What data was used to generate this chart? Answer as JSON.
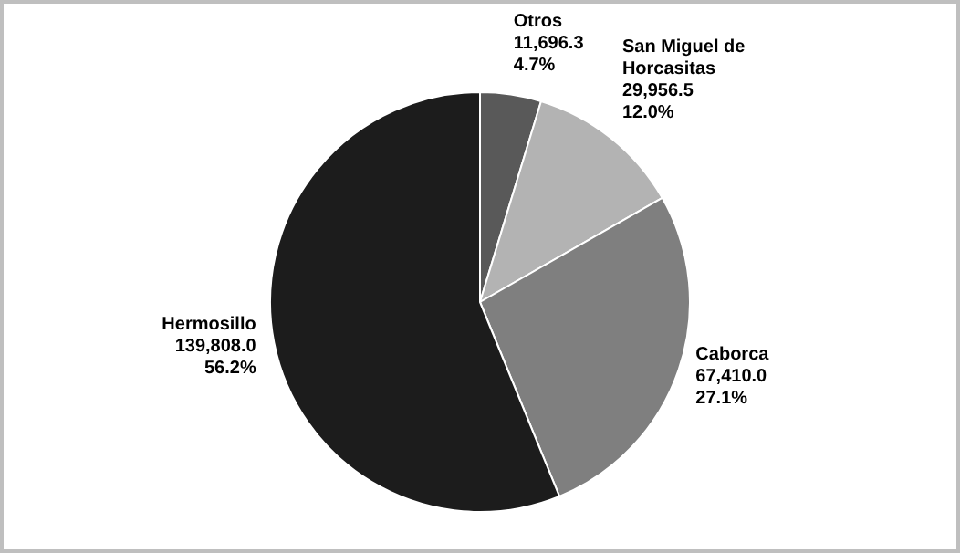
{
  "chart_data": {
    "type": "pie",
    "categories": [
      "Otros",
      "San Miguel de Horcasitas",
      "Caborca",
      "Hermosillo"
    ],
    "values": [
      11696.3,
      29956.5,
      67410.0,
      139808.0
    ],
    "value_labels": [
      "11,696.3\n4.7%",
      "29,956.5\n12.0%",
      "67,410.0\n27.1%",
      "139,808.0\n56.2%"
    ],
    "colors": [
      "#595959",
      "#b3b3b3",
      "#7f7f7f",
      "#1c1c1c"
    ],
    "legend": false
  }
}
